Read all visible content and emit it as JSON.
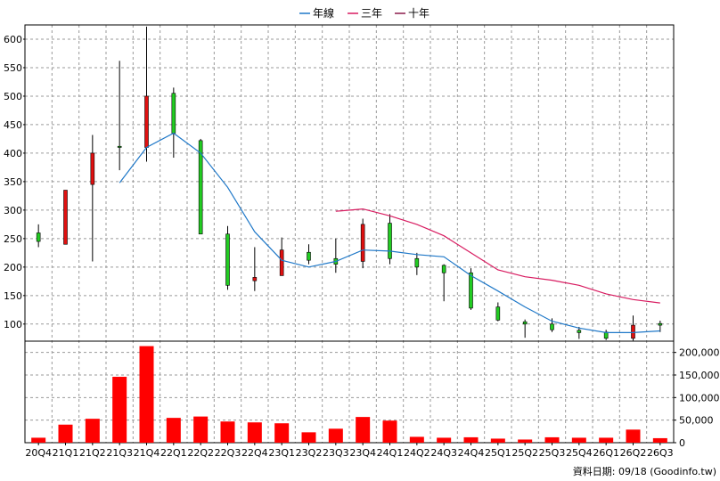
{
  "legend": [
    {
      "label": "年線",
      "color": "#1f78c8"
    },
    {
      "label": "三年",
      "color": "#d81b60"
    },
    {
      "label": "十年",
      "color": "#8b1a4a"
    }
  ],
  "footer": "資料日期: 09/18  (Goodinfo.tw)",
  "chart_data": [
    {
      "type": "candlestick",
      "ylim": [
        70,
        625
      ],
      "y_ticks": [
        100,
        150,
        200,
        250,
        300,
        350,
        400,
        450,
        500,
        550,
        600
      ],
      "categories": [
        "20Q4",
        "21Q1",
        "21Q2",
        "21Q3",
        "21Q4",
        "22Q1",
        "22Q2",
        "22Q3",
        "22Q4",
        "23Q1",
        "23Q2",
        "23Q3",
        "23Q4",
        "24Q1",
        "24Q2",
        "24Q3",
        "24Q4",
        "25Q1",
        "25Q2",
        "25Q3",
        "25Q4",
        "26Q1",
        "26Q2",
        "26Q3"
      ],
      "ohlc": [
        {
          "o": 245,
          "h": 275,
          "l": 235,
          "c": 260
        },
        {
          "o": 335,
          "h": 335,
          "l": 240,
          "c": 240
        },
        {
          "o": 400,
          "h": 432,
          "l": 210,
          "c": 345
        },
        {
          "o": 410,
          "h": 562,
          "l": 370,
          "c": 412
        },
        {
          "o": 500,
          "h": 622,
          "l": 385,
          "c": 410
        },
        {
          "o": 435,
          "h": 515,
          "l": 392,
          "c": 505
        },
        {
          "o": 258,
          "h": 425,
          "l": 258,
          "c": 422
        },
        {
          "o": 168,
          "h": 272,
          "l": 160,
          "c": 258
        },
        {
          "o": 182,
          "h": 235,
          "l": 158,
          "c": 176
        },
        {
          "o": 230,
          "h": 252,
          "l": 185,
          "c": 185
        },
        {
          "o": 212,
          "h": 240,
          "l": 205,
          "c": 226
        },
        {
          "o": 205,
          "h": 250,
          "l": 190,
          "c": 215
        },
        {
          "o": 275,
          "h": 285,
          "l": 198,
          "c": 210
        },
        {
          "o": 215,
          "h": 293,
          "l": 205,
          "c": 277
        },
        {
          "o": 200,
          "h": 225,
          "l": 186,
          "c": 215
        },
        {
          "o": 190,
          "h": 205,
          "l": 140,
          "c": 203
        },
        {
          "o": 128,
          "h": 198,
          "l": 125,
          "c": 190
        },
        {
          "o": 107,
          "h": 138,
          "l": 105,
          "c": 130
        },
        {
          "o": 100,
          "h": 108,
          "l": 76,
          "c": 104
        },
        {
          "o": 90,
          "h": 110,
          "l": 86,
          "c": 100
        },
        {
          "o": 85,
          "h": 95,
          "l": 74,
          "c": 89
        },
        {
          "o": 75,
          "h": 90,
          "l": 72,
          "c": 86
        },
        {
          "o": 98,
          "h": 115,
          "l": 71,
          "c": 75
        },
        {
          "o": 98,
          "h": 106,
          "l": 86,
          "c": 101
        }
      ],
      "up_color": "#22cc22",
      "down_color": "#e01010",
      "series": [
        {
          "name": "年線",
          "color": "#1f78c8",
          "values": [
            null,
            null,
            null,
            348,
            410,
            435,
            400,
            340,
            262,
            212,
            200,
            210,
            230,
            228,
            222,
            218,
            185,
            158,
            130,
            105,
            93,
            85,
            85,
            88
          ]
        },
        {
          "name": "三年",
          "color": "#d81b60",
          "values": [
            null,
            null,
            null,
            null,
            null,
            null,
            null,
            null,
            null,
            null,
            null,
            298,
            302,
            290,
            275,
            255,
            225,
            195,
            183,
            177,
            168,
            153,
            143,
            137
          ]
        }
      ]
    },
    {
      "type": "bar",
      "ylim": [
        0,
        225000
      ],
      "y_ticks": [
        0,
        50000,
        100000,
        150000,
        200000
      ],
      "y_tick_labels": [
        "0",
        "50,000",
        "100,000",
        "150,000",
        "200,000"
      ],
      "categories": [
        "20Q4",
        "21Q1",
        "21Q2",
        "21Q3",
        "21Q4",
        "22Q1",
        "22Q2",
        "22Q3",
        "22Q4",
        "23Q1",
        "23Q2",
        "23Q3",
        "23Q4",
        "24Q1",
        "24Q2",
        "24Q3",
        "24Q4",
        "25Q1",
        "25Q2",
        "25Q3",
        "25Q4",
        "26Q1",
        "26Q2",
        "26Q3"
      ],
      "values": [
        11000,
        40000,
        53000,
        146000,
        214000,
        55000,
        58000,
        47000,
        45000,
        43000,
        23000,
        31000,
        57000,
        49000,
        13000,
        11000,
        12000,
        9000,
        7000,
        12000,
        11000,
        11000,
        29000,
        10000
      ],
      "color": "#ff0000"
    }
  ]
}
